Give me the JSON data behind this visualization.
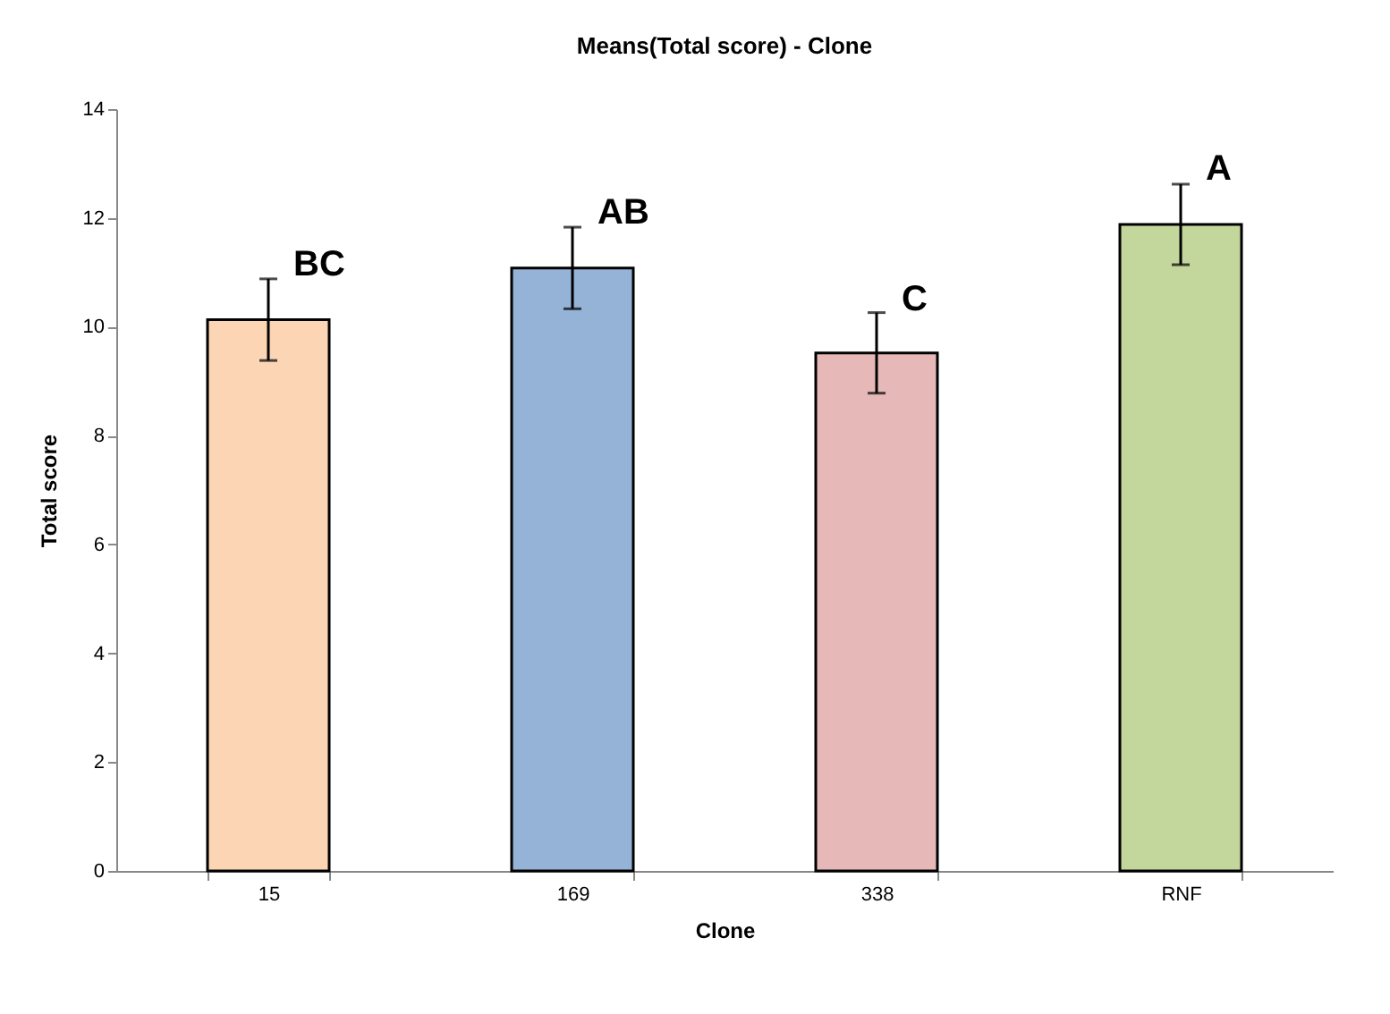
{
  "chart_data": {
    "type": "bar",
    "title": "Means(Total score) - Clone",
    "xlabel": "Clone",
    "ylabel": "Total score",
    "categories": [
      "15",
      "169",
      "338",
      "RNF"
    ],
    "values": [
      10.13,
      11.08,
      9.52,
      11.88
    ],
    "errors": [
      0.75,
      0.75,
      0.74,
      0.74
    ],
    "colors": [
      "#fcd5b5",
      "#95b3d7",
      "#e6b9b8",
      "#c3d69b"
    ],
    "ylim": [
      0,
      14
    ],
    "yticks": [
      0,
      2,
      4,
      6,
      8,
      10,
      12,
      14
    ],
    "grid": false,
    "annotations": [
      {
        "text": "BC",
        "x": "15",
        "y": 10.88
      },
      {
        "text": "AB",
        "x": "169",
        "y": 11.83
      },
      {
        "text": "C",
        "x": "338",
        "y": 10.23
      },
      {
        "text": "A",
        "x": "RNF",
        "y": 12.64
      }
    ]
  }
}
